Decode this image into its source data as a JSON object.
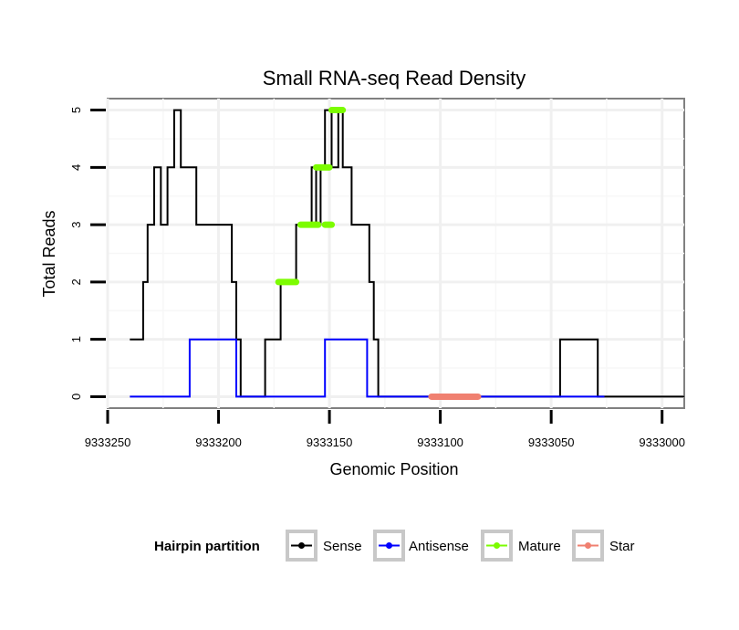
{
  "chart_data": {
    "type": "line",
    "title": "Small RNA-seq Read Density",
    "xlabel": "Genomic Position",
    "ylabel": "Total Reads",
    "x_reversed": true,
    "xlim": [
      9333250,
      9332990
    ],
    "ylim": [
      -0.2,
      5.2
    ],
    "x_ticks": [
      9333250,
      9333200,
      9333150,
      9333100,
      9333050,
      9333000
    ],
    "x_tick_labels": [
      "9333250",
      "9333200",
      "9333150",
      "9333100",
      "9333050",
      "9333000"
    ],
    "y_ticks": [
      0,
      1,
      2,
      3,
      4,
      5
    ],
    "y_tick_labels": [
      "0",
      "1",
      "2",
      "3",
      "4",
      "5"
    ],
    "grid": true,
    "legend": {
      "title": "Hairpin partition",
      "position": "bottom",
      "entries": [
        {
          "name": "Sense",
          "color": "#000000"
        },
        {
          "name": "Antisense",
          "color": "#0000ff"
        },
        {
          "name": "Mature",
          "color": "#7cfc00"
        },
        {
          "name": "Star",
          "color": "#f08070"
        }
      ]
    },
    "series": [
      {
        "name": "Sense",
        "color": "#000000",
        "style": "step",
        "x": [
          9333240,
          9333234,
          9333234,
          9333232,
          9333232,
          9333229,
          9333229,
          9333226,
          9333226,
          9333223,
          9333223,
          9333220,
          9333220,
          9333217,
          9333217,
          9333214,
          9333214,
          9333212,
          9333212,
          9333210,
          9333210,
          9333204,
          9333204,
          9333194,
          9333194,
          9333192,
          9333192,
          9333190,
          9333190,
          9333179,
          9333179,
          9333172,
          9333172,
          9333165,
          9333165,
          9333158,
          9333158,
          9333156,
          9333156,
          9333154,
          9333154,
          9333152,
          9333152,
          9333151,
          9333151,
          9333149,
          9333149,
          9333146,
          9333146,
          9333144,
          9333144,
          9333140,
          9333140,
          9333135,
          9333135,
          9333132,
          9333132,
          9333130,
          9333130,
          9333128,
          9333128,
          9333126,
          9333126,
          9333046,
          9333046,
          9333029,
          9333029,
          9332990
        ],
        "y": [
          1,
          1,
          2,
          2,
          3,
          3,
          4,
          4,
          3,
          3,
          4,
          4,
          5,
          5,
          4,
          4,
          4,
          4,
          4,
          4,
          3,
          3,
          3,
          3,
          2,
          2,
          1,
          1,
          0,
          0,
          1,
          1,
          2,
          2,
          3,
          3,
          4,
          4,
          3,
          3,
          4,
          4,
          5,
          5,
          5,
          5,
          4,
          4,
          5,
          5,
          4,
          4,
          3,
          3,
          3,
          3,
          2,
          2,
          1,
          1,
          0,
          0,
          0,
          0,
          1,
          1,
          0,
          0
        ]
      },
      {
        "name": "Antisense",
        "color": "#0000ff",
        "style": "step",
        "x": [
          9333240,
          9333213,
          9333213,
          9333192,
          9333192,
          9333163,
          9333163,
          9333152,
          9333152,
          9333133,
          9333133,
          9333026
        ],
        "y": [
          0,
          0,
          1,
          1,
          0,
          0,
          0,
          0,
          1,
          1,
          0,
          0
        ]
      },
      {
        "name": "Mature",
        "color": "#7cfc00",
        "style": "segments",
        "segments": [
          {
            "x": [
              9333173,
              9333165
            ],
            "y": 2
          },
          {
            "x": [
              9333163,
              9333155
            ],
            "y": 3
          },
          {
            "x": [
              9333152,
              9333149
            ],
            "y": 3
          },
          {
            "x": [
              9333156,
              9333150
            ],
            "y": 4
          },
          {
            "x": [
              9333149,
              9333144
            ],
            "y": 5
          }
        ]
      },
      {
        "name": "Star",
        "color": "#f08070",
        "style": "segments",
        "segments": [
          {
            "x": [
              9333104,
              9333083
            ],
            "y": 0
          }
        ]
      }
    ]
  }
}
